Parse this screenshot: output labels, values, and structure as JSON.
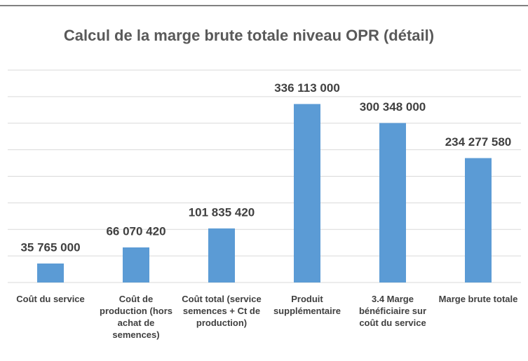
{
  "chart_data": {
    "type": "bar",
    "title": "Calcul de la marge brute totale niveau OPR (détail)",
    "categories": [
      "Coût du service",
      "Coût de production (hors achat de semences)",
      "Coût total (service semences + Ct de production)",
      "Produit supplémentaire",
      "3.4 Marge bénéficiaire sur coût du  service",
      "Marge brute totale"
    ],
    "values": [
      35765000,
      66070420,
      101835420,
      336113000,
      300348000,
      234277580
    ],
    "value_labels": [
      "35 765 000",
      "66 070 420",
      "101 835 420",
      "336 113 000",
      "300 348 000",
      "234 277 580"
    ],
    "color": "#5b9bd5",
    "ylim": [
      0,
      400000000
    ],
    "yticks": [
      0,
      50000000,
      100000000,
      150000000,
      200000000,
      250000000,
      300000000,
      350000000,
      400000000
    ],
    "grid": true
  }
}
